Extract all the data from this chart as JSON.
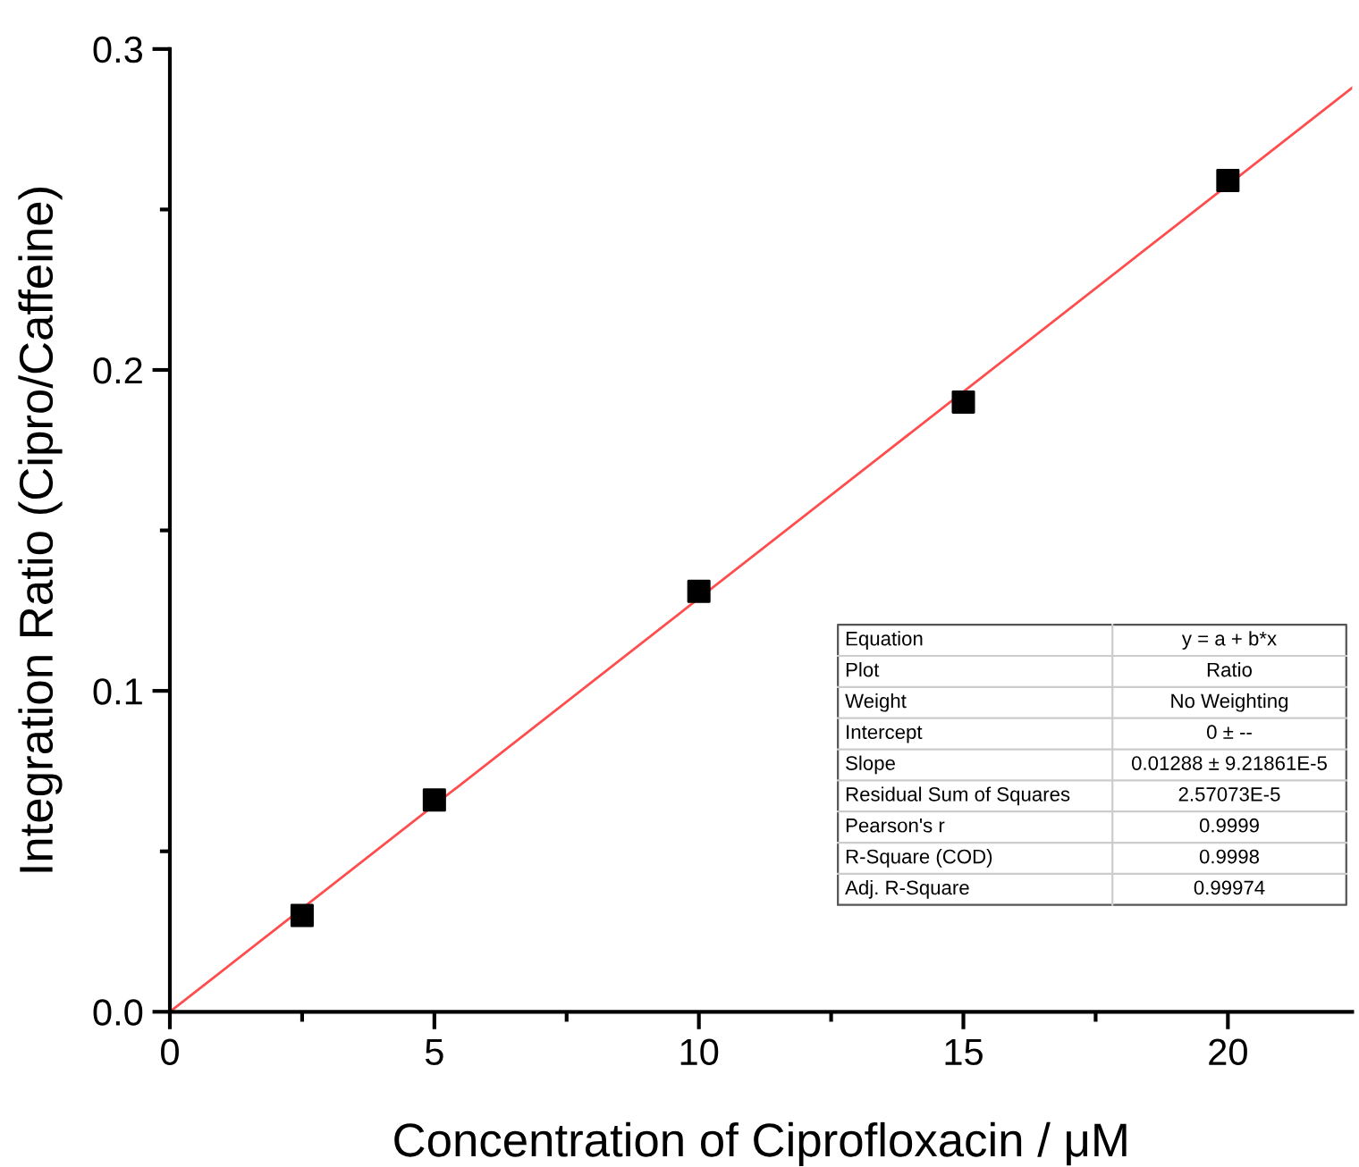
{
  "chart_data": {
    "type": "scatter",
    "xlabel": "Concentration of Ciprofloxacin / μM",
    "ylabel": "Integration Ratio (Cipro/Caffeine)",
    "x": [
      2.5,
      5,
      10,
      15,
      20
    ],
    "series": [
      {
        "color": "#000000",
        "marker": "square",
        "values": [
          0.03,
          0.066,
          0.131,
          0.19,
          0.259
        ]
      },
      {
        "type": "line",
        "color": "#ff4d4d",
        "marker": "none",
        "line_style": "solid",
        "x": [
          0,
          22.35
        ],
        "values": [
          0,
          0.2879
        ]
      }
    ],
    "xlim": [
      0,
      22.35
    ],
    "ylim": [
      0,
      0.3
    ],
    "xticks": [
      0,
      5,
      10,
      15,
      20
    ],
    "yticks": [
      {
        "value": 0,
        "label": "0.0"
      },
      0.1,
      0.2,
      0.3
    ],
    "grid": false,
    "annotations": [
      "Equation",
      "y = a + b*x",
      "Plot",
      "Ratio",
      "Weight",
      "No Weighting",
      "Intercept",
      "0 ± --",
      "Slope",
      "0.01288 ± 9.21861E-5",
      "Residual Sum of Squares",
      "2.57073E-5",
      "Pearson's r",
      "0.9999",
      "R-Square (COD)",
      "0.9998",
      "Adj. R-Square",
      "0.99974"
    ]
  }
}
